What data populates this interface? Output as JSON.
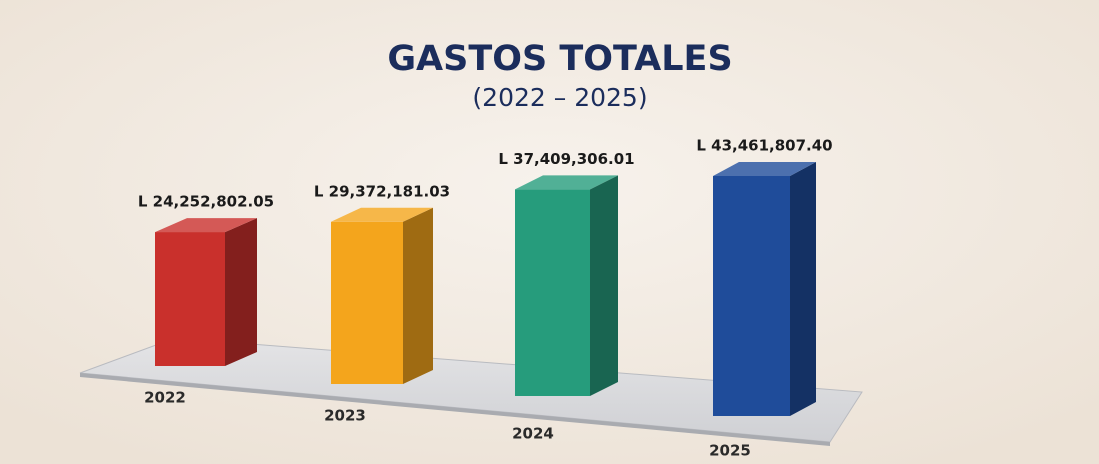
{
  "chart_data": {
    "type": "bar3d",
    "title": "GASTOS TOTALES",
    "subtitle": "(2022 – 2025)",
    "categories": [
      "2022",
      "2023",
      "2024",
      "2025"
    ],
    "values": [
      24252802.05,
      29372181.03,
      37409306.01,
      43461807.4
    ],
    "value_labels": [
      "L 24,252,802.05",
      "L 29,372,181.03",
      "L 37,409,306.01",
      "L 43,461,807.40"
    ],
    "colors": [
      "#c9302c",
      "#f4a51c",
      "#269c7c",
      "#1f4c9a"
    ]
  }
}
